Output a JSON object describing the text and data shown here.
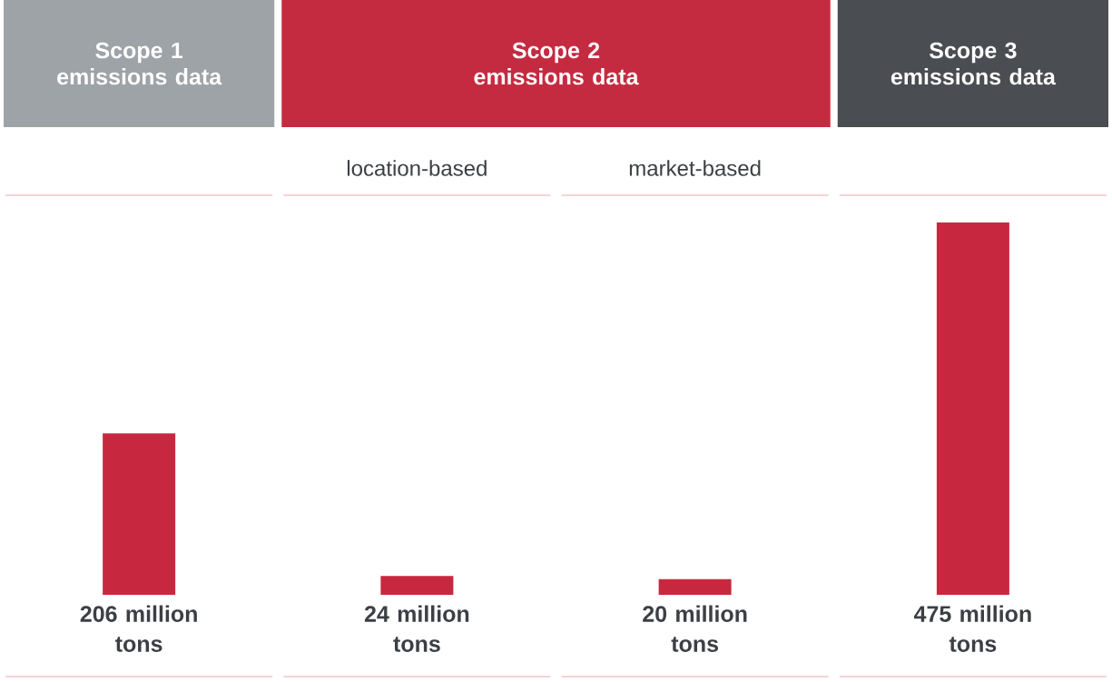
{
  "chart_data": {
    "type": "bar",
    "categories": [
      "Scope 1 emissions data",
      "location-based",
      "market-based",
      "Scope 3 emissions data"
    ],
    "values": [
      206,
      24,
      20,
      475
    ],
    "value_labels": [
      "206 million tons",
      "24 million tons",
      "20 million tons",
      "475 million tons"
    ],
    "color": "#c8283f",
    "annotations": [
      "Scope 2 emissions data"
    ]
  }
}
